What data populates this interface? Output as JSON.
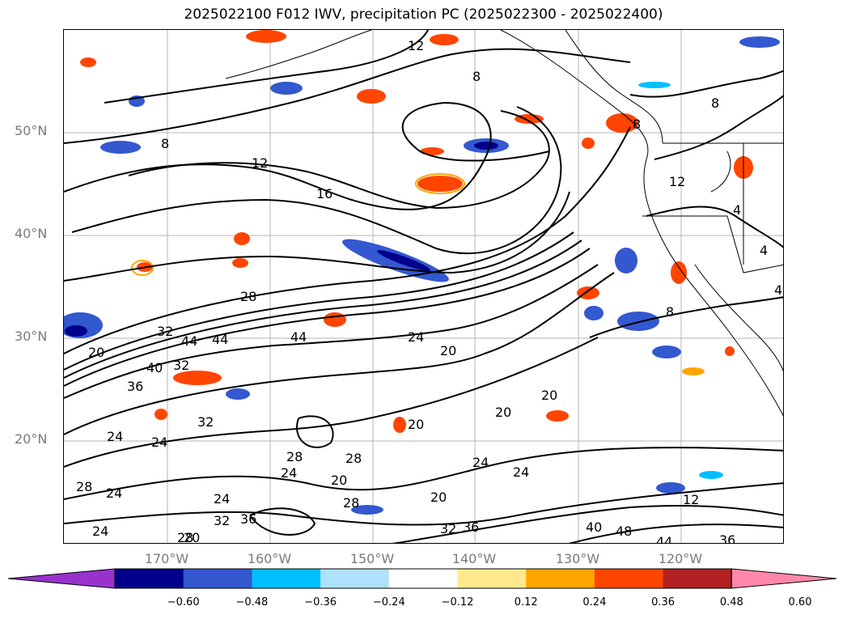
{
  "title": "2025022100 F012 IWV, precipitation PC (2025022300 - 2025022400)",
  "lat_labels": [
    "50°N",
    "40°N",
    "30°N",
    "20°N"
  ],
  "lon_labels": [
    "170°W",
    "160°W",
    "150°W",
    "140°W",
    "130°W",
    "120°W"
  ],
  "contour_labels": [
    "12",
    "8",
    "8",
    "8",
    "12",
    "16",
    "8",
    "12",
    "4",
    "4",
    "4",
    "8",
    "28",
    "32",
    "44",
    "44",
    "44",
    "20",
    "40",
    "36",
    "32",
    "24",
    "20",
    "20",
    "20",
    "20",
    "32",
    "24",
    "24",
    "28",
    "24",
    "28",
    "28",
    "24",
    "24",
    "24",
    "28",
    "36",
    "32",
    "28",
    "36",
    "24",
    "24",
    "20",
    "20",
    "20",
    "32",
    "40",
    "48",
    "44",
    "36",
    "12"
  ],
  "colorbar": {
    "ticks": [
      "−0.60",
      "−0.48",
      "−0.36",
      "−0.24",
      "−0.12",
      "0.12",
      "0.24",
      "0.36",
      "0.48",
      "0.60"
    ],
    "colors": [
      "#9932CC",
      "#00008B",
      "#3358CF",
      "#00BFFF",
      "#ADE2FA",
      "#FFFFFF",
      "#FFE98C",
      "#FFA500",
      "#FF4500",
      "#B22222",
      "#FF88AA"
    ]
  }
}
